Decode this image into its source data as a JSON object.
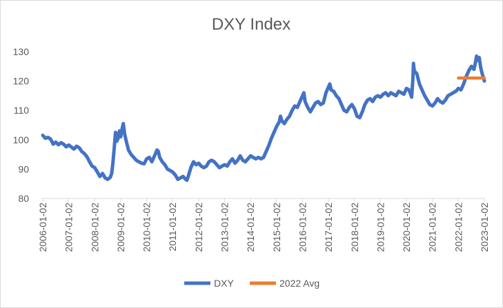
{
  "chart_data": {
    "type": "line",
    "title": "DXY Index",
    "xlabel": "",
    "ylabel": "",
    "ylim": [
      80,
      130
    ],
    "yticks": [
      "80",
      "90",
      "100",
      "110",
      "120",
      "130"
    ],
    "xtick_labels": [
      "2006-01-02",
      "2007-01-02",
      "2008-01-02",
      "2009-01-02",
      "2010-01-02",
      "2011-01-02",
      "2012-01-02",
      "2013-01-02",
      "2014-01-02",
      "2015-01-02",
      "2016-01-02",
      "2017-01-02",
      "2018-01-02",
      "2019-01-02",
      "2020-01-02",
      "2021-01-02",
      "2022-01-02",
      "2023-01-02"
    ],
    "xlim": [
      2006.0,
      2023.0
    ],
    "grid": false,
    "legend_position": "bottom",
    "series": [
      {
        "name": "DXY",
        "color": "#4472C4",
        "points": [
          [
            2006.0,
            101.5
          ],
          [
            2006.1,
            100.5
          ],
          [
            2006.2,
            100.8
          ],
          [
            2006.3,
            100.2
          ],
          [
            2006.4,
            98.5
          ],
          [
            2006.5,
            99.2
          ],
          [
            2006.6,
            98.3
          ],
          [
            2006.7,
            99.0
          ],
          [
            2006.8,
            98.5
          ],
          [
            2006.9,
            97.6
          ],
          [
            2007.0,
            98.2
          ],
          [
            2007.1,
            97.5
          ],
          [
            2007.2,
            96.8
          ],
          [
            2007.3,
            97.8
          ],
          [
            2007.4,
            97.3
          ],
          [
            2007.5,
            96.0
          ],
          [
            2007.6,
            95.3
          ],
          [
            2007.7,
            94.2
          ],
          [
            2007.8,
            92.5
          ],
          [
            2007.9,
            91.0
          ],
          [
            2008.0,
            90.5
          ],
          [
            2008.1,
            89.0
          ],
          [
            2008.2,
            87.5
          ],
          [
            2008.3,
            88.5
          ],
          [
            2008.4,
            87.0
          ],
          [
            2008.5,
            86.5
          ],
          [
            2008.6,
            87.2
          ],
          [
            2008.65,
            88.5
          ],
          [
            2008.7,
            92.0
          ],
          [
            2008.75,
            97.0
          ],
          [
            2008.8,
            102.5
          ],
          [
            2008.85,
            99.5
          ],
          [
            2008.9,
            100.5
          ],
          [
            2008.95,
            103.0
          ],
          [
            2009.0,
            101.0
          ],
          [
            2009.05,
            103.5
          ],
          [
            2009.1,
            105.5
          ],
          [
            2009.15,
            102.0
          ],
          [
            2009.2,
            100.0
          ],
          [
            2009.3,
            96.5
          ],
          [
            2009.4,
            95.0
          ],
          [
            2009.5,
            94.0
          ],
          [
            2009.6,
            93.0
          ],
          [
            2009.7,
            92.5
          ],
          [
            2009.8,
            92.0
          ],
          [
            2009.9,
            91.8
          ],
          [
            2010.0,
            93.5
          ],
          [
            2010.1,
            94.0
          ],
          [
            2010.2,
            92.5
          ],
          [
            2010.3,
            94.5
          ],
          [
            2010.4,
            96.5
          ],
          [
            2010.45,
            96.0
          ],
          [
            2010.5,
            94.0
          ],
          [
            2010.6,
            92.5
          ],
          [
            2010.7,
            91.5
          ],
          [
            2010.8,
            90.0
          ],
          [
            2010.9,
            89.5
          ],
          [
            2011.0,
            89.0
          ],
          [
            2011.1,
            88.0
          ],
          [
            2011.2,
            86.5
          ],
          [
            2011.3,
            87.0
          ],
          [
            2011.4,
            87.5
          ],
          [
            2011.5,
            86.5
          ],
          [
            2011.55,
            86.2
          ],
          [
            2011.6,
            87.5
          ],
          [
            2011.7,
            90.5
          ],
          [
            2011.8,
            92.5
          ],
          [
            2011.9,
            91.5
          ],
          [
            2012.0,
            92.0
          ],
          [
            2012.1,
            91.0
          ],
          [
            2012.2,
            90.5
          ],
          [
            2012.3,
            91.0
          ],
          [
            2012.4,
            92.5
          ],
          [
            2012.5,
            93.0
          ],
          [
            2012.6,
            92.5
          ],
          [
            2012.7,
            91.5
          ],
          [
            2012.8,
            90.5
          ],
          [
            2012.9,
            91.0
          ],
          [
            2013.0,
            91.5
          ],
          [
            2013.1,
            91.0
          ],
          [
            2013.2,
            92.5
          ],
          [
            2013.3,
            93.5
          ],
          [
            2013.4,
            92.0
          ],
          [
            2013.5,
            93.0
          ],
          [
            2013.6,
            94.5
          ],
          [
            2013.7,
            93.0
          ],
          [
            2013.8,
            92.5
          ],
          [
            2013.9,
            93.5
          ],
          [
            2014.0,
            94.5
          ],
          [
            2014.1,
            94.0
          ],
          [
            2014.2,
            93.5
          ],
          [
            2014.3,
            94.0
          ],
          [
            2014.4,
            93.5
          ],
          [
            2014.5,
            94.0
          ],
          [
            2014.6,
            96.0
          ],
          [
            2014.7,
            98.0
          ],
          [
            2014.8,
            100.5
          ],
          [
            2014.9,
            102.5
          ],
          [
            2015.0,
            104.5
          ],
          [
            2015.1,
            106.0
          ],
          [
            2015.15,
            108.0
          ],
          [
            2015.2,
            106.5
          ],
          [
            2015.3,
            105.5
          ],
          [
            2015.4,
            107.0
          ],
          [
            2015.5,
            108.0
          ],
          [
            2015.6,
            110.0
          ],
          [
            2015.7,
            111.5
          ],
          [
            2015.8,
            111.0
          ],
          [
            2015.9,
            113.0
          ],
          [
            2016.0,
            115.0
          ],
          [
            2016.05,
            116.0
          ],
          [
            2016.1,
            113.0
          ],
          [
            2016.2,
            111.0
          ],
          [
            2016.3,
            109.5
          ],
          [
            2016.4,
            111.0
          ],
          [
            2016.5,
            112.5
          ],
          [
            2016.6,
            113.0
          ],
          [
            2016.7,
            112.0
          ],
          [
            2016.8,
            112.5
          ],
          [
            2016.9,
            116.0
          ],
          [
            2017.0,
            118.0
          ],
          [
            2017.05,
            119.0
          ],
          [
            2017.1,
            117.0
          ],
          [
            2017.2,
            116.5
          ],
          [
            2017.3,
            115.0
          ],
          [
            2017.4,
            114.0
          ],
          [
            2017.5,
            112.0
          ],
          [
            2017.6,
            110.0
          ],
          [
            2017.7,
            109.5
          ],
          [
            2017.8,
            111.0
          ],
          [
            2017.9,
            112.0
          ],
          [
            2018.0,
            110.5
          ],
          [
            2018.1,
            108.0
          ],
          [
            2018.2,
            107.5
          ],
          [
            2018.3,
            109.5
          ],
          [
            2018.4,
            112.0
          ],
          [
            2018.5,
            113.5
          ],
          [
            2018.6,
            114.0
          ],
          [
            2018.7,
            113.0
          ],
          [
            2018.8,
            114.5
          ],
          [
            2018.9,
            115.0
          ],
          [
            2019.0,
            114.5
          ],
          [
            2019.1,
            115.5
          ],
          [
            2019.2,
            116.0
          ],
          [
            2019.3,
            115.0
          ],
          [
            2019.4,
            116.0
          ],
          [
            2019.5,
            115.5
          ],
          [
            2019.6,
            115.0
          ],
          [
            2019.7,
            116.5
          ],
          [
            2019.8,
            116.0
          ],
          [
            2019.9,
            115.5
          ],
          [
            2020.0,
            117.5
          ],
          [
            2020.1,
            117.0
          ],
          [
            2020.2,
            114.5
          ],
          [
            2020.25,
            121.0
          ],
          [
            2020.27,
            126.0
          ],
          [
            2020.3,
            123.5
          ],
          [
            2020.4,
            122.5
          ],
          [
            2020.5,
            119.0
          ],
          [
            2020.6,
            117.0
          ],
          [
            2020.7,
            115.0
          ],
          [
            2020.8,
            113.5
          ],
          [
            2020.9,
            112.0
          ],
          [
            2021.0,
            111.5
          ],
          [
            2021.1,
            112.5
          ],
          [
            2021.2,
            114.0
          ],
          [
            2021.3,
            113.0
          ],
          [
            2021.4,
            112.5
          ],
          [
            2021.5,
            113.5
          ],
          [
            2021.6,
            115.0
          ],
          [
            2021.7,
            115.5
          ],
          [
            2021.8,
            116.0
          ],
          [
            2021.9,
            116.5
          ],
          [
            2022.0,
            117.5
          ],
          [
            2022.1,
            117.0
          ],
          [
            2022.2,
            119.0
          ],
          [
            2022.3,
            121.5
          ],
          [
            2022.4,
            123.5
          ],
          [
            2022.5,
            125.0
          ],
          [
            2022.6,
            124.0
          ],
          [
            2022.65,
            126.0
          ],
          [
            2022.7,
            128.5
          ],
          [
            2022.75,
            127.0
          ],
          [
            2022.8,
            128.0
          ],
          [
            2022.85,
            125.0
          ],
          [
            2022.9,
            123.0
          ],
          [
            2022.95,
            121.5
          ],
          [
            2023.0,
            120.0
          ]
        ]
      },
      {
        "name": "2022 Avg",
        "color": "#ED7D31",
        "points": [
          [
            2022.0,
            121.0
          ],
          [
            2023.0,
            121.0
          ]
        ]
      }
    ]
  }
}
